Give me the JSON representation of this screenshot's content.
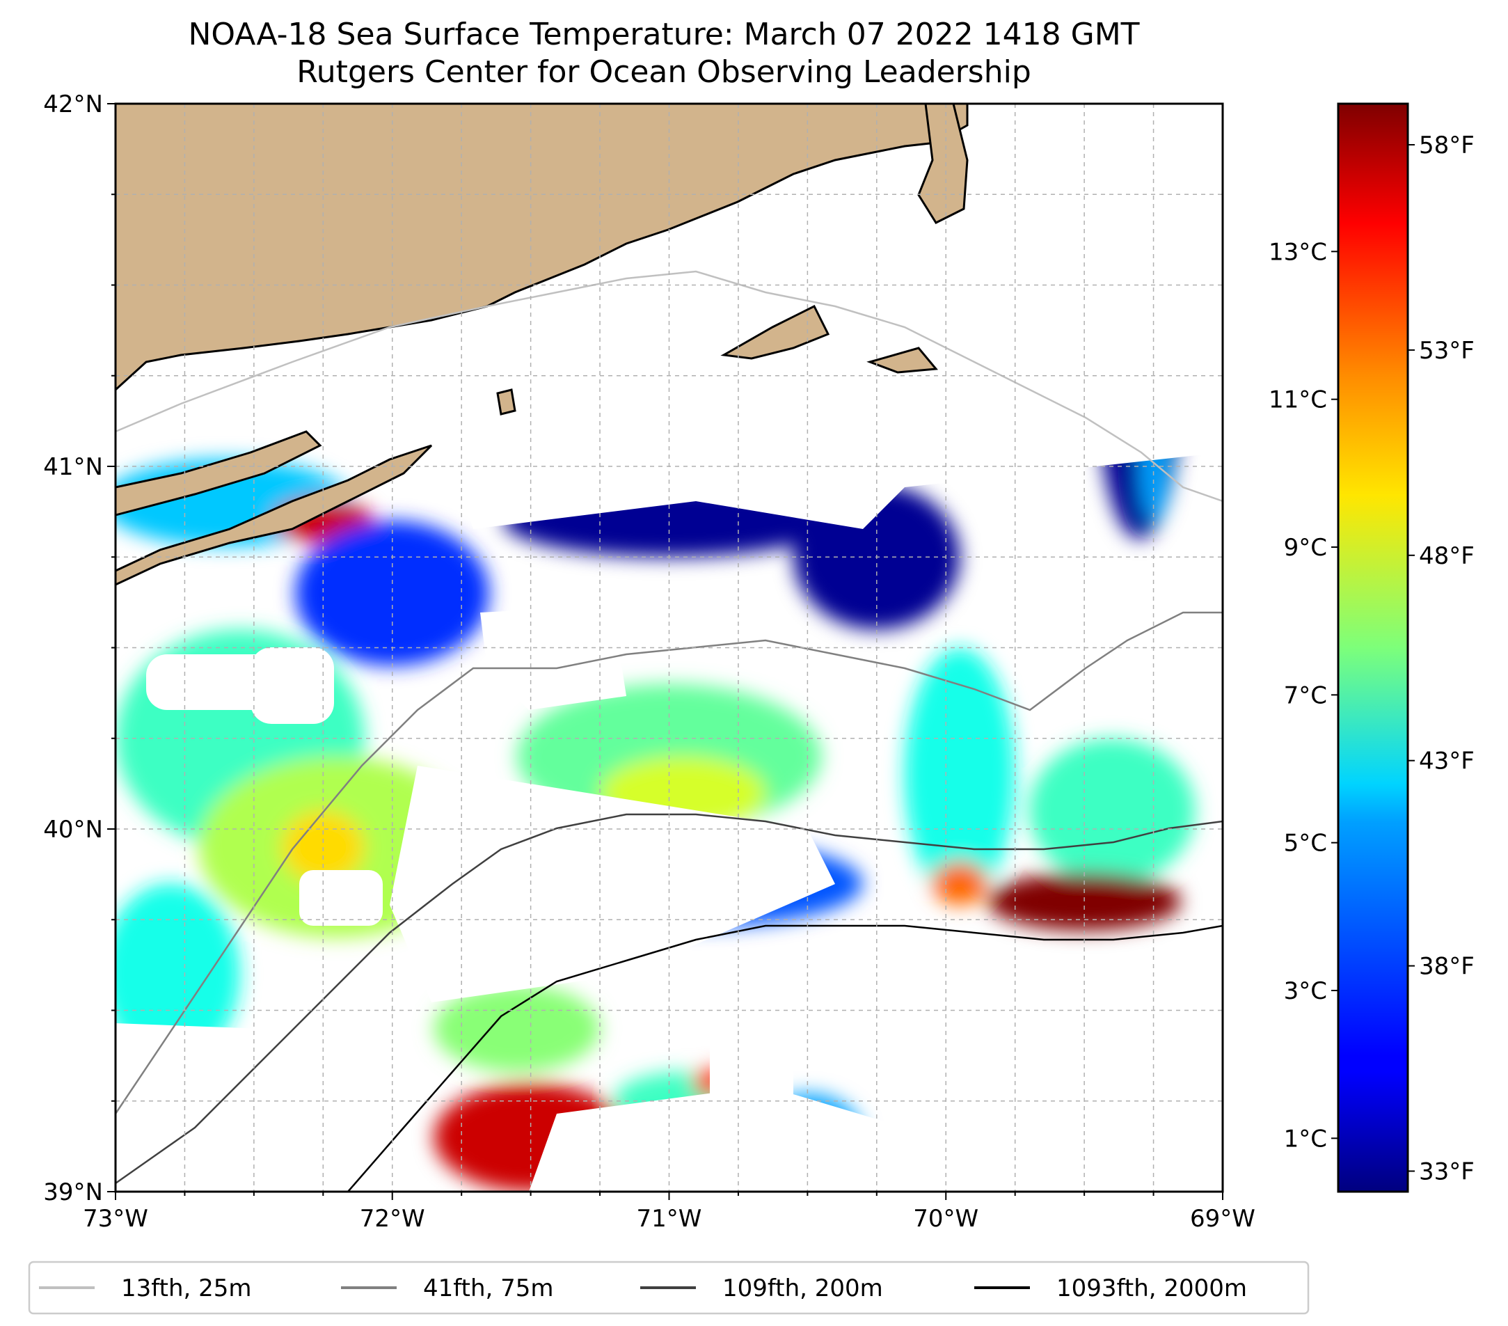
{
  "title": {
    "line1": "NOAA-18 Sea Surface Temperature: March 07 2022 1418 GMT",
    "line2": "Rutgers Center for Ocean Observing Leadership"
  },
  "map": {
    "lon_range": [
      -73,
      -69
    ],
    "lat_range": [
      39,
      42
    ],
    "x_ticks": [
      {
        "value": -73,
        "label": "73°W"
      },
      {
        "value": -72,
        "label": "72°W"
      },
      {
        "value": -71,
        "label": "71°W"
      },
      {
        "value": -70,
        "label": "70°W"
      },
      {
        "value": -69,
        "label": "69°W"
      }
    ],
    "y_ticks": [
      {
        "value": 39,
        "label": "39°N"
      },
      {
        "value": 40,
        "label": "40°N"
      },
      {
        "value": 41,
        "label": "41°N"
      },
      {
        "value": 42,
        "label": "42°N"
      }
    ],
    "gridlines": true,
    "land_color": "#d2b48c",
    "colormap": "jet"
  },
  "colorbar": {
    "celsius_ticks": [
      {
        "value": 1,
        "label": "1°C"
      },
      {
        "value": 3,
        "label": "3°C"
      },
      {
        "value": 5,
        "label": "5°C"
      },
      {
        "value": 7,
        "label": "7°C"
      },
      {
        "value": 9,
        "label": "9°C"
      },
      {
        "value": 11,
        "label": "11°C"
      },
      {
        "value": 13,
        "label": "13°C"
      }
    ],
    "fahrenheit_ticks": [
      {
        "value": 33,
        "label": "33°F"
      },
      {
        "value": 38,
        "label": "38°F"
      },
      {
        "value": 43,
        "label": "43°F"
      },
      {
        "value": 48,
        "label": "48°F"
      },
      {
        "value": 53,
        "label": "53°F"
      },
      {
        "value": 58,
        "label": "58°F"
      }
    ],
    "range_f": [
      32.5,
      59
    ]
  },
  "legend": {
    "placement": "bottom",
    "entries": [
      {
        "label": "13fth, 25m",
        "color": "#c0c0c0"
      },
      {
        "label": "41fth, 75m",
        "color": "#808080"
      },
      {
        "label": "109fth, 200m",
        "color": "#404040"
      },
      {
        "label": "1093fth, 2000m",
        "color": "#000000"
      }
    ]
  },
  "sst_regions": [
    {
      "label": "",
      "temp_f": 41,
      "lon": -72.6,
      "lat": 40.9,
      "rlon": 0.45,
      "rlat": 0.12
    },
    {
      "label": "",
      "temp_f": 57,
      "lon": -72.25,
      "lat": 40.85,
      "rlon": 0.18,
      "rlat": 0.06
    },
    {
      "label": "",
      "temp_f": 37,
      "lon": -72.0,
      "lat": 40.65,
      "rlon": 0.35,
      "rlat": 0.2
    },
    {
      "label": "",
      "temp_f": 44,
      "lon": -72.55,
      "lat": 40.25,
      "rlon": 0.45,
      "rlat": 0.3
    },
    {
      "label": "",
      "temp_f": 47,
      "lon": -72.2,
      "lat": 39.95,
      "rlon": 0.5,
      "rlat": 0.25
    },
    {
      "label": "",
      "temp_f": 50,
      "lon": -72.25,
      "lat": 39.95,
      "rlon": 0.15,
      "rlat": 0.1
    },
    {
      "label": "",
      "temp_f": 43,
      "lon": -72.8,
      "lat": 39.6,
      "rlon": 0.25,
      "rlat": 0.25
    },
    {
      "label": "",
      "temp_f": 46,
      "lon": -71.55,
      "lat": 39.45,
      "rlon": 0.3,
      "rlat": 0.12
    },
    {
      "label": "",
      "temp_f": 57,
      "lon": -71.5,
      "lat": 39.15,
      "rlon": 0.35,
      "rlat": 0.15
    },
    {
      "label": "",
      "temp_f": 44,
      "lon": -70.95,
      "lat": 39.25,
      "rlon": 0.25,
      "rlat": 0.08
    },
    {
      "label": "",
      "temp_f": 55,
      "lon": -70.85,
      "lat": 39.3,
      "rlon": 0.06,
      "rlat": 0.04
    },
    {
      "label": "",
      "temp_f": 40,
      "lon": -70.5,
      "lat": 39.15,
      "rlon": 0.2,
      "rlat": 0.12
    },
    {
      "label": "",
      "temp_f": 45,
      "lon": -71.0,
      "lat": 40.2,
      "rlon": 0.55,
      "rlat": 0.2
    },
    {
      "label": "",
      "temp_f": 48,
      "lon": -70.95,
      "lat": 40.1,
      "rlon": 0.3,
      "rlat": 0.1
    },
    {
      "label": "",
      "temp_f": 38,
      "lon": -70.9,
      "lat": 39.85,
      "rlon": 0.6,
      "rlat": 0.12
    },
    {
      "label": "",
      "temp_f": 43,
      "lon": -69.95,
      "lat": 40.15,
      "rlon": 0.2,
      "rlat": 0.35
    },
    {
      "label": "",
      "temp_f": 44,
      "lon": -69.4,
      "lat": 40.05,
      "rlon": 0.3,
      "rlat": 0.2
    },
    {
      "label": "",
      "temp_f": 59,
      "lon": -69.5,
      "lat": 39.8,
      "rlon": 0.35,
      "rlat": 0.08
    },
    {
      "label": "",
      "temp_f": 53,
      "lon": -69.95,
      "lat": 39.85,
      "rlon": 0.1,
      "rlat": 0.06
    },
    {
      "label": "",
      "temp_f": 33,
      "lon": -71.0,
      "lat": 40.85,
      "rlon": 0.6,
      "rlat": 0.1
    },
    {
      "label": "",
      "temp_f": 33,
      "lon": -70.25,
      "lat": 40.75,
      "rlon": 0.3,
      "rlat": 0.2
    },
    {
      "label": "",
      "temp_f": 33,
      "lon": -69.3,
      "lat": 41.2,
      "rlon": 0.15,
      "rlat": 0.4
    },
    {
      "label": "",
      "temp_f": 40,
      "lon": -69.25,
      "lat": 41.0,
      "rlon": 0.05,
      "rlat": 0.15
    }
  ]
}
